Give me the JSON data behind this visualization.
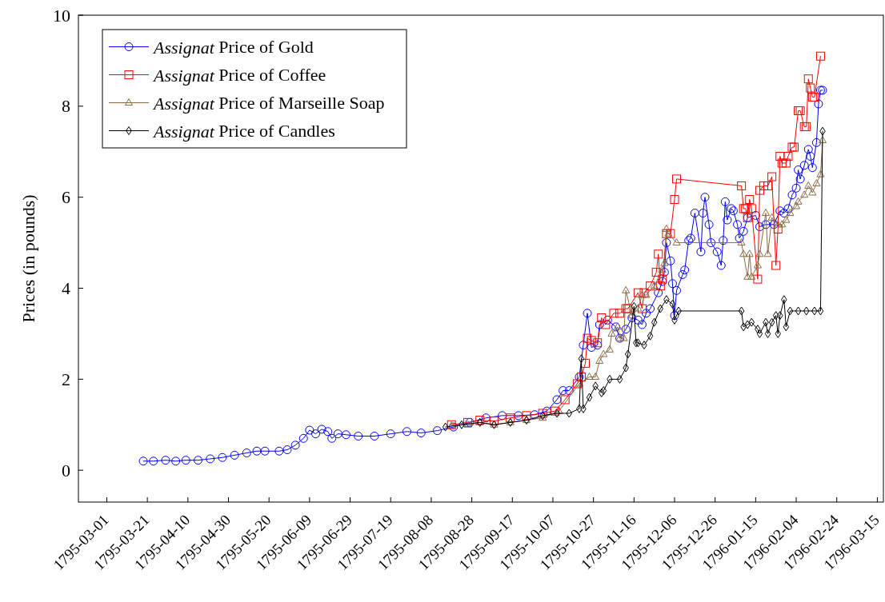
{
  "chart_data": {
    "type": "line",
    "ylabel": "Prices (in pounds)",
    "xlim": [
      "1795-02-15",
      "1796-03-18"
    ],
    "ylim": [
      -0.7,
      10
    ],
    "yticks": [
      0,
      2,
      4,
      6,
      8,
      10
    ],
    "xticks": [
      "1795-03-01",
      "1795-03-21",
      "1795-04-10",
      "1795-04-30",
      "1795-05-20",
      "1795-06-09",
      "1795-06-29",
      "1795-07-19",
      "1795-08-08",
      "1795-08-28",
      "1795-09-17",
      "1795-10-07",
      "1795-10-27",
      "1795-11-16",
      "1795-12-06",
      "1795-12-26",
      "1796-01-15",
      "1796-02-04",
      "1796-02-24",
      "1796-03-15"
    ],
    "grid": false,
    "legend": "top left",
    "line_style": "solid",
    "series": [
      {
        "name": "Assignat Price of Gold",
        "color": "#0000ff",
        "marker": "circle",
        "x": [
          "1795-03-19",
          "1795-03-24",
          "1795-03-30",
          "1795-04-04",
          "1795-04-09",
          "1795-04-15",
          "1795-04-21",
          "1795-04-27",
          "1795-05-03",
          "1795-05-09",
          "1795-05-14",
          "1795-05-18",
          "1795-05-25",
          "1795-05-29",
          "1795-06-02",
          "1795-06-06",
          "1795-06-09",
          "1795-06-12",
          "1795-06-15",
          "1795-06-18",
          "1795-06-20",
          "1795-06-23",
          "1795-06-27",
          "1795-07-03",
          "1795-07-11",
          "1795-07-19",
          "1795-07-27",
          "1795-08-03",
          "1795-08-11",
          "1795-08-19",
          "1795-08-27",
          "1795-09-04",
          "1795-09-12",
          "1795-09-20",
          "1795-09-28",
          "1795-10-04",
          "1795-10-09",
          "1795-10-12",
          "1795-10-15",
          "1795-10-20",
          "1795-10-22",
          "1795-10-24",
          "1795-10-26",
          "1795-10-29",
          "1795-10-30",
          "1795-11-03",
          "1795-11-07",
          "1795-11-09",
          "1795-11-12",
          "1795-11-15",
          "1795-11-18",
          "1795-11-20",
          "1795-11-22",
          "1795-11-24",
          "1795-11-28",
          "1795-11-30",
          "1795-12-01",
          "1795-12-02",
          "1795-12-04",
          "1795-12-05",
          "1795-12-06",
          "1795-12-07",
          "1795-12-10",
          "1795-12-11",
          "1795-12-13",
          "1795-12-14",
          "1795-12-16",
          "1795-12-19",
          "1795-12-20",
          "1795-12-21",
          "1795-12-23",
          "1795-12-24",
          "1795-12-27",
          "1795-12-29",
          "1795-12-30",
          "1795-12-31",
          "1796-01-01",
          "1796-01-03",
          "1796-01-04",
          "1796-01-06",
          "1796-01-07",
          "1796-01-09",
          "1796-01-11",
          "1796-01-15",
          "1796-01-17",
          "1796-01-20",
          "1796-01-24",
          "1796-01-27",
          "1796-01-29",
          "1796-01-31",
          "1796-02-02",
          "1796-02-04",
          "1796-02-05",
          "1796-02-06",
          "1796-02-08",
          "1796-02-10",
          "1796-02-11",
          "1796-02-12",
          "1796-02-14",
          "1796-02-15",
          "1796-02-16",
          "1796-02-17"
        ],
        "values": [
          0.2,
          0.2,
          0.22,
          0.2,
          0.22,
          0.22,
          0.25,
          0.28,
          0.33,
          0.38,
          0.42,
          0.42,
          0.42,
          0.45,
          0.55,
          0.7,
          0.88,
          0.8,
          0.9,
          0.85,
          0.7,
          0.8,
          0.78,
          0.75,
          0.75,
          0.8,
          0.85,
          0.82,
          0.87,
          0.95,
          1.05,
          1.15,
          1.2,
          1.2,
          1.22,
          1.3,
          1.55,
          1.75,
          1.75,
          2.05,
          2.75,
          3.45,
          2.7,
          2.75,
          3.2,
          3.3,
          3.15,
          2.9,
          3.1,
          3.35,
          3.3,
          3.2,
          3.45,
          3.55,
          3.9,
          4.15,
          4.35,
          5.0,
          4.6,
          4.1,
          3.4,
          3.95,
          4.3,
          4.4,
          5.05,
          5.1,
          5.65,
          4.8,
          5.65,
          6.0,
          5.4,
          5.0,
          4.8,
          4.5,
          5.05,
          5.9,
          5.5,
          5.75,
          5.7,
          5.4,
          5.1,
          5.25,
          5.55,
          5.6,
          5.35,
          5.4,
          5.4,
          5.7,
          5.65,
          5.75,
          6.05,
          6.2,
          6.6,
          6.4,
          6.7,
          7.05,
          6.9,
          6.65,
          7.2,
          8.05,
          8.35,
          8.35
        ]
      },
      {
        "name": "Assignat Price of Coffee",
        "color": "#ff0000",
        "marker": "square",
        "x": [
          "1795-08-18",
          "1795-08-26",
          "1795-09-01",
          "1795-09-08",
          "1795-09-16",
          "1795-09-24",
          "1795-10-02",
          "1795-10-08",
          "1795-10-13",
          "1795-10-19",
          "1795-10-21",
          "1795-10-23",
          "1795-10-24",
          "1795-10-26",
          "1795-10-29",
          "1795-10-31",
          "1795-11-02",
          "1795-11-06",
          "1795-11-09",
          "1795-11-12",
          "1795-11-13",
          "1795-11-18",
          "1795-11-20",
          "1795-11-21",
          "1795-11-24",
          "1795-11-27",
          "1795-11-28",
          "1795-11-29",
          "1795-11-30",
          "1795-12-02",
          "1795-12-04",
          "1795-12-06",
          "1795-12-07",
          "1796-01-08",
          "1796-01-09",
          "1796-01-10",
          "1796-01-11",
          "1796-01-12",
          "1796-01-13",
          "1796-01-16",
          "1796-01-17",
          "1796-01-19",
          "1796-01-21",
          "1796-01-23",
          "1796-01-25",
          "1796-01-26",
          "1796-01-27",
          "1796-01-28",
          "1796-01-30",
          "1796-01-31",
          "1796-02-02",
          "1796-02-03",
          "1796-02-05",
          "1796-02-06",
          "1796-02-08",
          "1796-02-09",
          "1796-02-10",
          "1796-02-11",
          "1796-02-12",
          "1796-02-13",
          "1796-02-16"
        ],
        "values": [
          1.0,
          1.05,
          1.1,
          1.08,
          1.15,
          1.2,
          1.25,
          1.3,
          1.55,
          1.9,
          2.05,
          2.35,
          2.9,
          2.85,
          2.8,
          3.35,
          3.2,
          3.45,
          3.45,
          3.55,
          3.55,
          3.9,
          3.55,
          3.9,
          4.05,
          4.35,
          4.75,
          4.05,
          4.2,
          5.2,
          5.2,
          5.95,
          6.4,
          6.25,
          5.75,
          5.75,
          5.55,
          5.95,
          5.75,
          4.2,
          6.15,
          6.25,
          6.25,
          6.45,
          4.5,
          5.3,
          6.9,
          6.75,
          6.75,
          6.9,
          7.1,
          7.1,
          7.9,
          7.9,
          7.55,
          7.55,
          8.6,
          8.4,
          8.2,
          8.2,
          9.1
        ]
      },
      {
        "name": "Assignat Price of Marseille Soap",
        "color": "#8b6b47",
        "marker": "triangle",
        "x": [
          "1795-08-18",
          "1795-08-26",
          "1795-09-01",
          "1795-09-08",
          "1795-09-16",
          "1795-09-24",
          "1795-10-02",
          "1795-10-10",
          "1795-10-20",
          "1795-10-25",
          "1795-10-28",
          "1795-10-30",
          "1795-11-01",
          "1795-11-04",
          "1795-11-05",
          "1795-11-08",
          "1795-11-09",
          "1795-11-11",
          "1795-11-12",
          "1795-11-15",
          "1795-11-18",
          "1795-11-20",
          "1795-11-22",
          "1795-11-26",
          "1795-11-30",
          "1795-12-01",
          "1795-12-02",
          "1795-12-03",
          "1795-12-07",
          "1796-01-08",
          "1796-01-09",
          "1796-01-11",
          "1796-01-12",
          "1796-01-13",
          "1796-01-16",
          "1796-01-17",
          "1796-01-20",
          "1796-01-21",
          "1796-01-23",
          "1796-01-26",
          "1796-01-28",
          "1796-01-30",
          "1796-02-01",
          "1796-02-04",
          "1796-02-05",
          "1796-02-08",
          "1796-02-10",
          "1796-02-12",
          "1796-02-14",
          "1796-02-16",
          "1796-02-17"
        ],
        "values": [
          0.98,
          1.0,
          1.05,
          1.0,
          1.05,
          1.1,
          1.15,
          1.3,
          1.9,
          2.05,
          2.05,
          2.4,
          2.55,
          2.65,
          3.0,
          3.15,
          2.9,
          2.9,
          3.95,
          3.4,
          3.55,
          3.85,
          3.85,
          4.05,
          4.4,
          4.55,
          5.3,
          5.2,
          5.0,
          5.0,
          4.75,
          4.25,
          4.75,
          4.25,
          4.5,
          4.75,
          5.65,
          4.75,
          5.55,
          5.4,
          5.4,
          5.5,
          5.65,
          5.8,
          5.9,
          6.05,
          6.25,
          6.1,
          6.3,
          6.5,
          7.25
        ]
      },
      {
        "name": "Assignat Price of Candles",
        "color": "#000000",
        "marker": "diamond",
        "x": [
          "1795-08-15",
          "1795-08-23",
          "1795-09-01",
          "1795-09-08",
          "1795-09-16",
          "1795-09-24",
          "1795-10-02",
          "1795-10-09",
          "1795-10-15",
          "1795-10-20",
          "1795-10-21",
          "1795-10-22",
          "1795-10-25",
          "1795-10-28",
          "1795-10-31",
          "1795-11-01",
          "1795-11-04",
          "1795-11-09",
          "1795-11-12",
          "1795-11-13",
          "1795-11-16",
          "1795-11-17",
          "1795-11-18",
          "1795-11-21",
          "1795-11-24",
          "1795-11-26",
          "1795-11-29",
          "1795-12-02",
          "1795-12-05",
          "1795-12-06",
          "1795-12-08",
          "1796-01-08",
          "1796-01-09",
          "1796-01-11",
          "1796-01-13",
          "1796-01-16",
          "1796-01-17",
          "1796-01-20",
          "1796-01-21",
          "1796-01-23",
          "1796-01-25",
          "1796-01-26",
          "1796-01-27",
          "1796-01-29",
          "1796-01-30",
          "1796-02-01",
          "1796-02-05",
          "1796-02-09",
          "1796-02-13",
          "1796-02-16",
          "1796-02-17"
        ],
        "values": [
          0.95,
          1.0,
          1.05,
          1.0,
          1.05,
          1.1,
          1.2,
          1.25,
          1.25,
          1.35,
          2.45,
          1.35,
          1.6,
          1.85,
          1.7,
          1.75,
          2.0,
          2.0,
          2.25,
          2.55,
          3.6,
          2.8,
          2.8,
          2.75,
          2.95,
          3.25,
          3.55,
          3.75,
          3.65,
          3.3,
          3.5,
          3.5,
          3.15,
          3.2,
          3.25,
          3.1,
          3.0,
          3.25,
          3.0,
          3.25,
          3.4,
          3.0,
          3.4,
          3.75,
          3.15,
          3.5,
          3.5,
          3.5,
          3.5,
          3.5,
          7.45
        ]
      }
    ]
  }
}
